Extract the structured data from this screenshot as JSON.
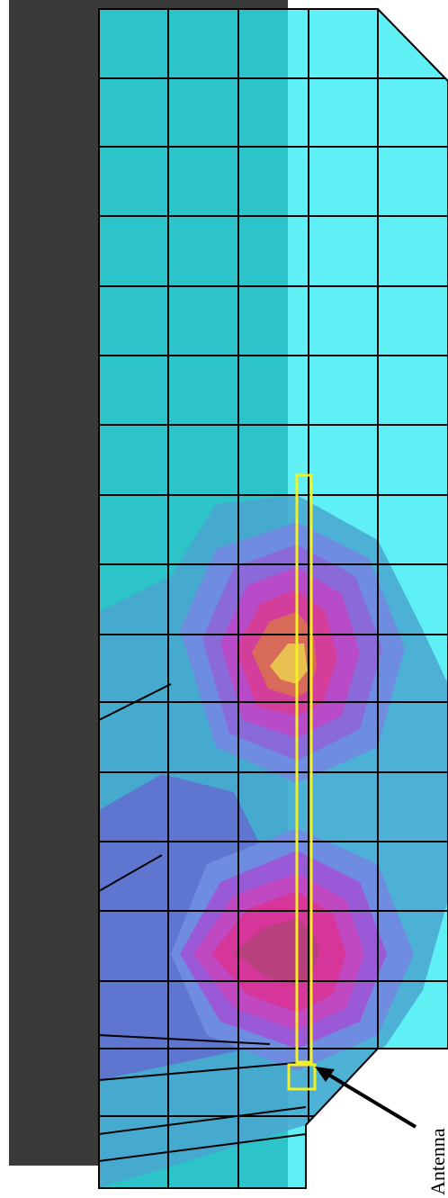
{
  "label": "Antenna"
}
